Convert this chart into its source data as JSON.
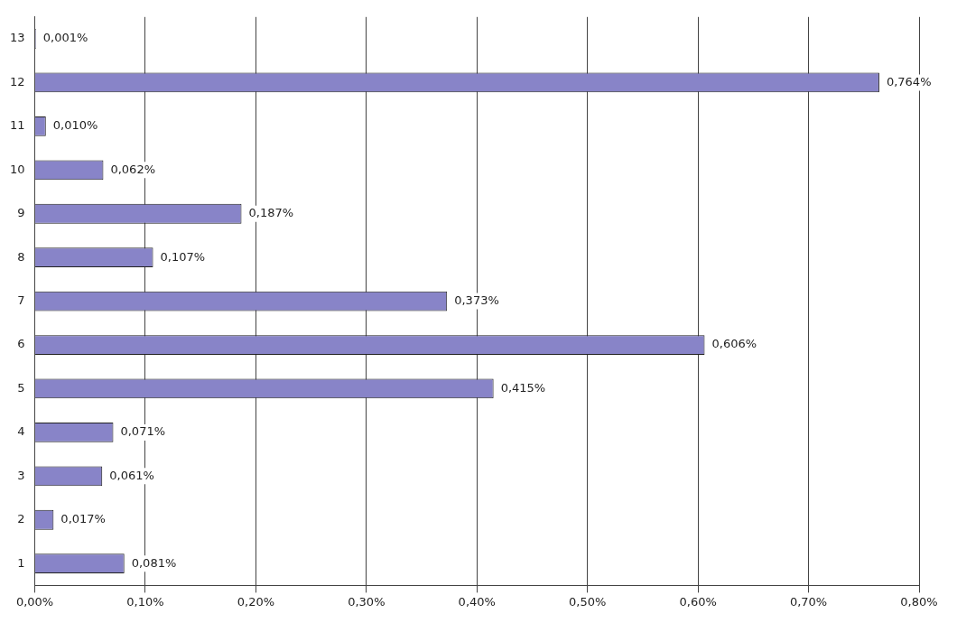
{
  "chart_data": {
    "type": "bar",
    "orientation": "horizontal",
    "categories": [
      "13",
      "12",
      "11",
      "10",
      "9",
      "8",
      "7",
      "6",
      "5",
      "4",
      "3",
      "2",
      "1"
    ],
    "values": [
      0.001,
      0.764,
      0.01,
      0.062,
      0.187,
      0.107,
      0.373,
      0.606,
      0.415,
      0.071,
      0.061,
      0.017,
      0.081
    ],
    "value_labels": [
      "0,001%",
      "0,764%",
      "0,010%",
      "0,062%",
      "0,187%",
      "0,107%",
      "0,373%",
      "0,606%",
      "0,415%",
      "0,071%",
      "0,061%",
      "0,017%",
      "0,081%"
    ],
    "color": "#8884c8",
    "xlim": [
      0,
      0.8
    ],
    "xticks": [
      {
        "value": 0,
        "label": "0,00%"
      },
      {
        "value": 0.1,
        "label": "0,10%"
      },
      {
        "value": 0.2,
        "label": "0,20%"
      },
      {
        "value": 0.3,
        "label": "0,30%"
      },
      {
        "value": 0.4,
        "label": "0,40%"
      },
      {
        "value": 0.5,
        "label": "0,50%"
      },
      {
        "value": 0.6,
        "label": "0,60%"
      },
      {
        "value": 0.7,
        "label": "0,70%"
      },
      {
        "value": 0.8,
        "label": "0,80%"
      }
    ],
    "grid": "x"
  }
}
